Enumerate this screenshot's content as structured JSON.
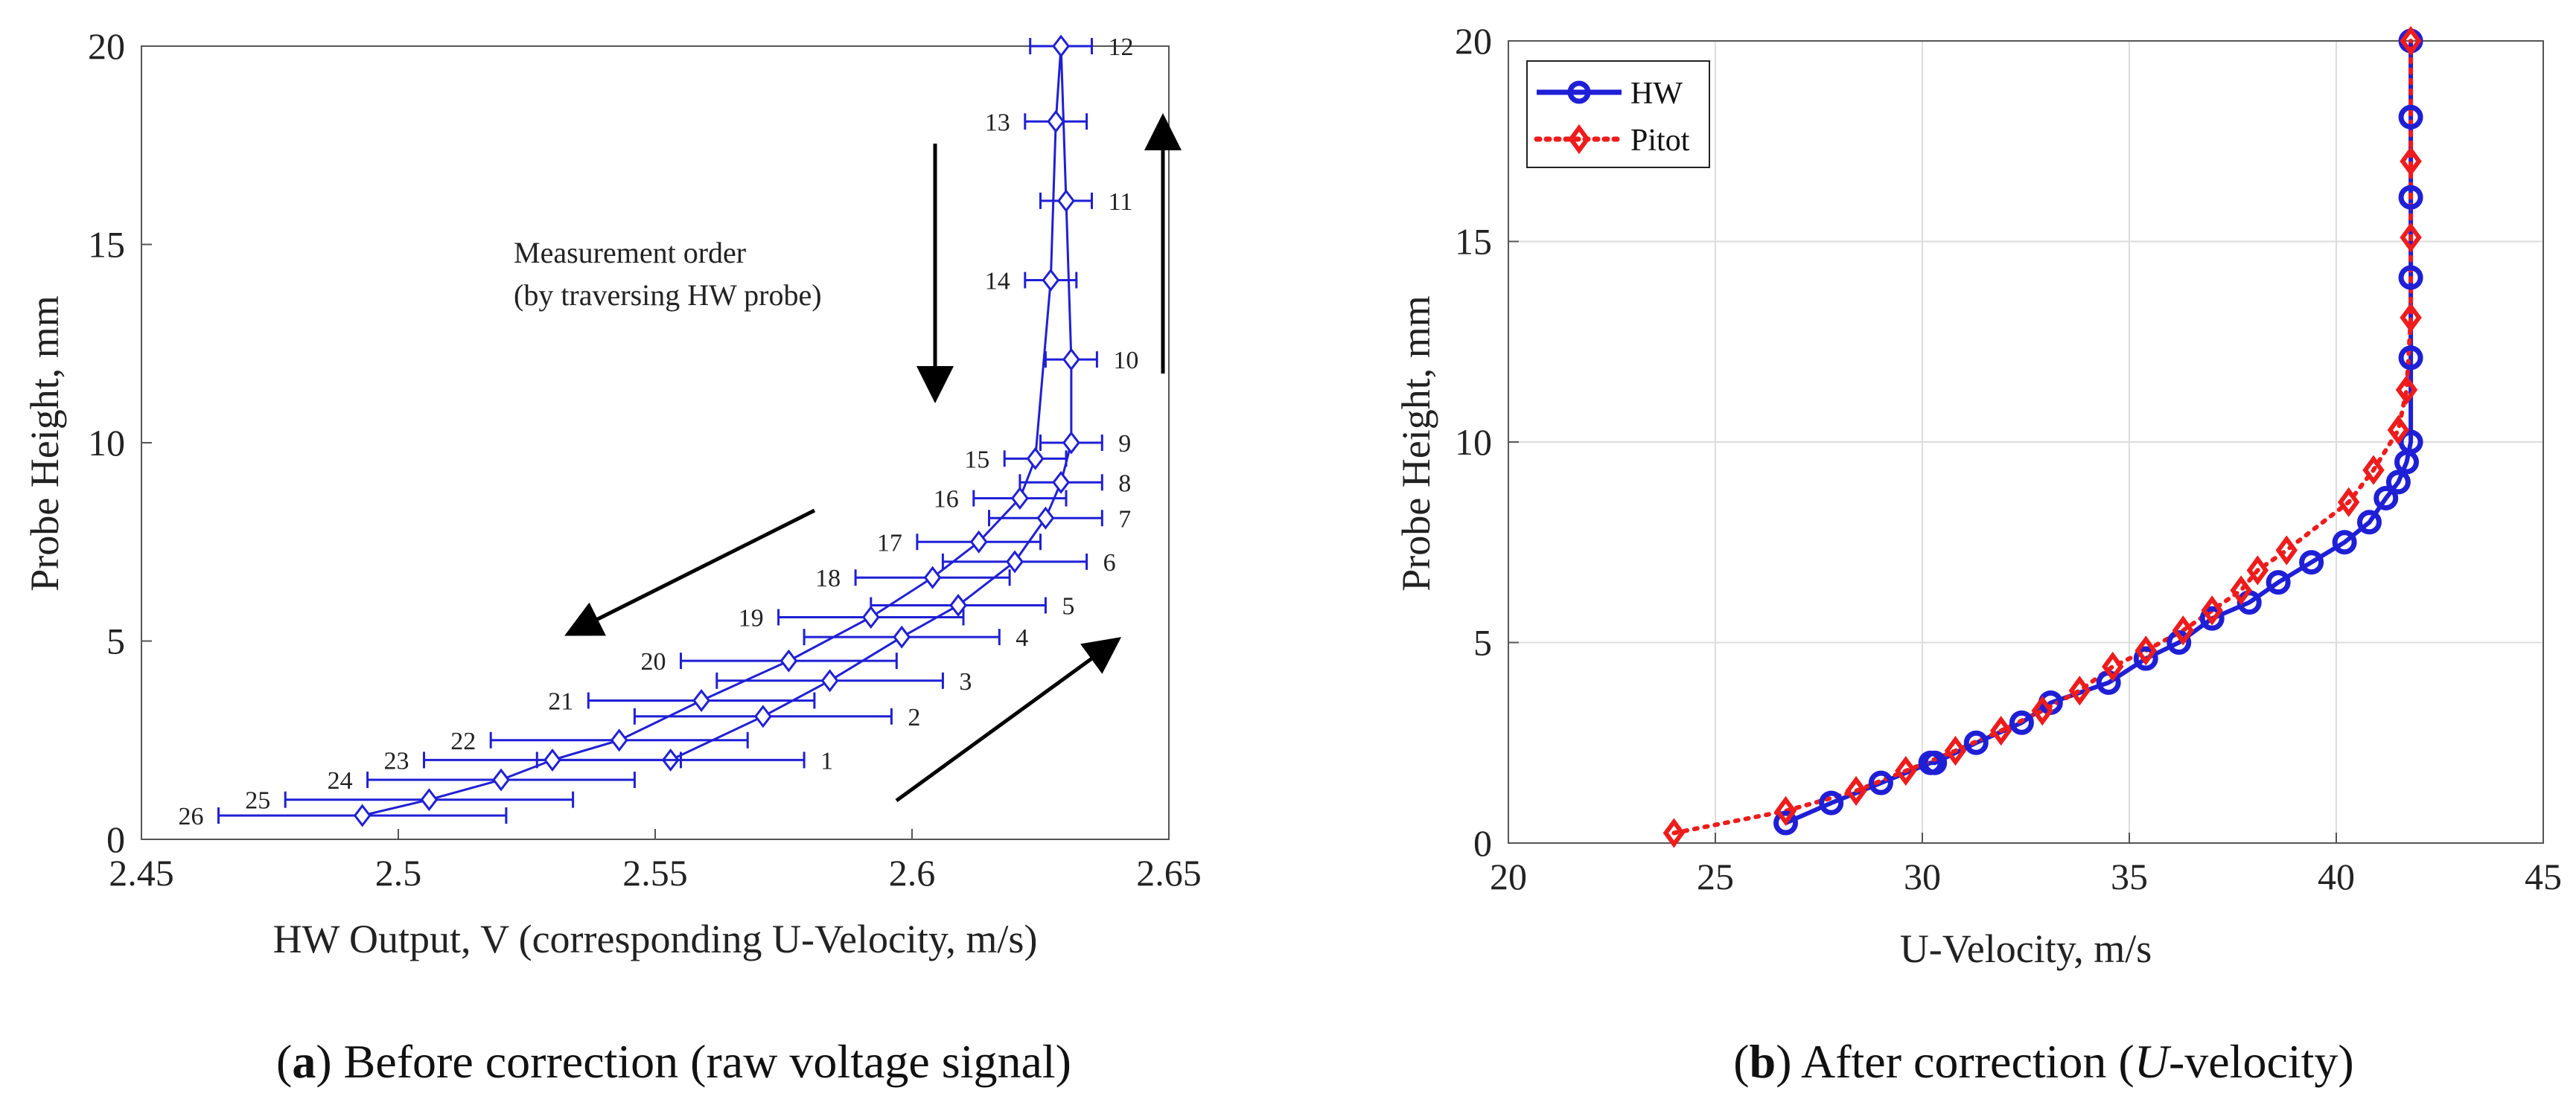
{
  "chart_data": [
    {
      "type": "line",
      "id": "a",
      "xlabel": "HW Output, V (corresponding U-Velocity, m/s)",
      "ylabel": "Probe Height, mm",
      "xlim": [
        2.45,
        2.65
      ],
      "ylim": [
        0,
        20
      ],
      "xticks": [
        "2.45",
        "2.5",
        "2.55",
        "2.6",
        "2.65"
      ],
      "yticks": [
        "0",
        "5",
        "10",
        "15",
        "20"
      ],
      "grid": false,
      "caption_bold": "a",
      "caption_rest": ") Before correction (raw voltage signal)",
      "annotation": [
        "Measurement order",
        "(by traversing HW probe)"
      ],
      "series": [
        {
          "name": "HW output",
          "color": "#1f1fd6",
          "marker": "diamond",
          "points": [
            {
              "label": "1",
              "x": 2.553,
              "y": 2.0,
              "err": 0.026
            },
            {
              "label": "2",
              "x": 2.571,
              "y": 3.1,
              "err": 0.025
            },
            {
              "label": "3",
              "x": 2.584,
              "y": 4.0,
              "err": 0.022
            },
            {
              "label": "4",
              "x": 2.598,
              "y": 5.1,
              "err": 0.019
            },
            {
              "label": "5",
              "x": 2.609,
              "y": 5.9,
              "err": 0.017
            },
            {
              "label": "6",
              "x": 2.62,
              "y": 7.0,
              "err": 0.014
            },
            {
              "label": "7",
              "x": 2.626,
              "y": 8.1,
              "err": 0.011
            },
            {
              "label": "8",
              "x": 2.629,
              "y": 9.0,
              "err": 0.008
            },
            {
              "label": "9",
              "x": 2.631,
              "y": 10.0,
              "err": 0.006
            },
            {
              "label": "10",
              "x": 2.631,
              "y": 12.1,
              "err": 0.005
            },
            {
              "label": "11",
              "x": 2.63,
              "y": 16.1,
              "err": 0.005
            },
            {
              "label": "12",
              "x": 2.629,
              "y": 20.0,
              "err": 0.006
            },
            {
              "label": "13",
              "x": 2.628,
              "y": 18.1,
              "err": 0.006
            },
            {
              "label": "14",
              "x": 2.627,
              "y": 14.1,
              "err": 0.005
            },
            {
              "label": "15",
              "x": 2.624,
              "y": 9.6,
              "err": 0.006
            },
            {
              "label": "16",
              "x": 2.621,
              "y": 8.6,
              "err": 0.009
            },
            {
              "label": "17",
              "x": 2.613,
              "y": 7.5,
              "err": 0.012
            },
            {
              "label": "18",
              "x": 2.604,
              "y": 6.6,
              "err": 0.015
            },
            {
              "label": "19",
              "x": 2.592,
              "y": 5.6,
              "err": 0.018
            },
            {
              "label": "20",
              "x": 2.576,
              "y": 4.5,
              "err": 0.021
            },
            {
              "label": "21",
              "x": 2.559,
              "y": 3.5,
              "err": 0.022
            },
            {
              "label": "22",
              "x": 2.543,
              "y": 2.5,
              "err": 0.025
            },
            {
              "label": "23",
              "x": 2.53,
              "y": 2.0,
              "err": 0.025
            },
            {
              "label": "24",
              "x": 2.52,
              "y": 1.5,
              "err": 0.026
            },
            {
              "label": "25",
              "x": 2.506,
              "y": 1.0,
              "err": 0.028
            },
            {
              "label": "26",
              "x": 2.493,
              "y": 0.6,
              "err": 0.028
            }
          ]
        }
      ]
    },
    {
      "type": "line",
      "id": "b",
      "xlabel": "U-Velocity, m/s",
      "ylabel": "Probe Height, mm",
      "xlim": [
        20,
        45
      ],
      "ylim": [
        0,
        20
      ],
      "xticks": [
        "20",
        "25",
        "30",
        "35",
        "40",
        "45"
      ],
      "yticks": [
        "0",
        "5",
        "10",
        "15",
        "20"
      ],
      "grid": true,
      "legend": "top-left",
      "caption_bold": "b",
      "caption_pre": ") After correction (",
      "caption_ital": "U",
      "caption_post": "-velocity)",
      "series": [
        {
          "name": "HW",
          "color": "#1f1fd6",
          "style": "solid",
          "marker": "circle",
          "x": [
            26.7,
            27.8,
            29.0,
            30.2,
            30.3,
            31.3,
            32.4,
            33.1,
            34.5,
            35.4,
            36.2,
            37.0,
            37.9,
            38.6,
            39.4,
            40.2,
            40.8,
            41.2,
            41.5,
            41.7,
            41.8,
            41.8,
            41.8,
            41.8,
            41.8,
            41.8
          ],
          "y": [
            0.5,
            1.0,
            1.5,
            2.0,
            2.0,
            2.5,
            3.0,
            3.5,
            4.0,
            4.6,
            5.0,
            5.6,
            6.0,
            6.5,
            7.0,
            7.5,
            8.0,
            8.6,
            9.0,
            9.5,
            10.0,
            12.1,
            14.1,
            16.1,
            18.1,
            20.0
          ]
        },
        {
          "name": "Pitot",
          "color": "#ee1c1c",
          "style": "dotted",
          "marker": "diamond",
          "x": [
            24.0,
            26.7,
            28.4,
            29.6,
            30.8,
            31.9,
            32.9,
            33.8,
            34.6,
            35.4,
            36.3,
            37.0,
            37.7,
            38.1,
            38.8,
            40.3,
            40.9,
            41.5,
            41.7,
            41.8,
            41.8,
            41.8,
            41.8
          ],
          "y": [
            0.25,
            0.8,
            1.3,
            1.8,
            2.3,
            2.8,
            3.3,
            3.8,
            4.4,
            4.8,
            5.3,
            5.8,
            6.3,
            6.8,
            7.3,
            8.5,
            9.3,
            10.3,
            11.3,
            13.1,
            15.1,
            17.0,
            20.0
          ]
        }
      ]
    }
  ]
}
